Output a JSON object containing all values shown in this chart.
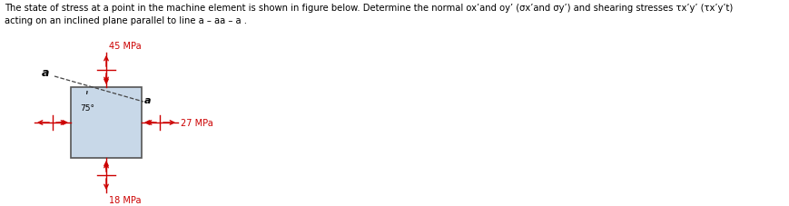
{
  "line1": "The state of stress at a point in the machine element is shown in figure below. Determine the normal ox’and oy’ (σx’and σy’) and shearing stresses τx’y’ (τx’y’t)",
  "line2": "acting on an inclined plane parallel to line a – aa – a .",
  "stress_top": "45 MPa",
  "stress_right": "27 MPa",
  "stress_bottom": "18 MPa",
  "angle_label": "75°",
  "label_a": "a",
  "box_color": "#c8d8e8",
  "box_edge_color": "#555555",
  "arrow_color": "#cc0000",
  "dashed_color": "#444444",
  "bg_color": "#ffffff",
  "figsize": [
    8.69,
    2.28
  ],
  "dpi": 100
}
